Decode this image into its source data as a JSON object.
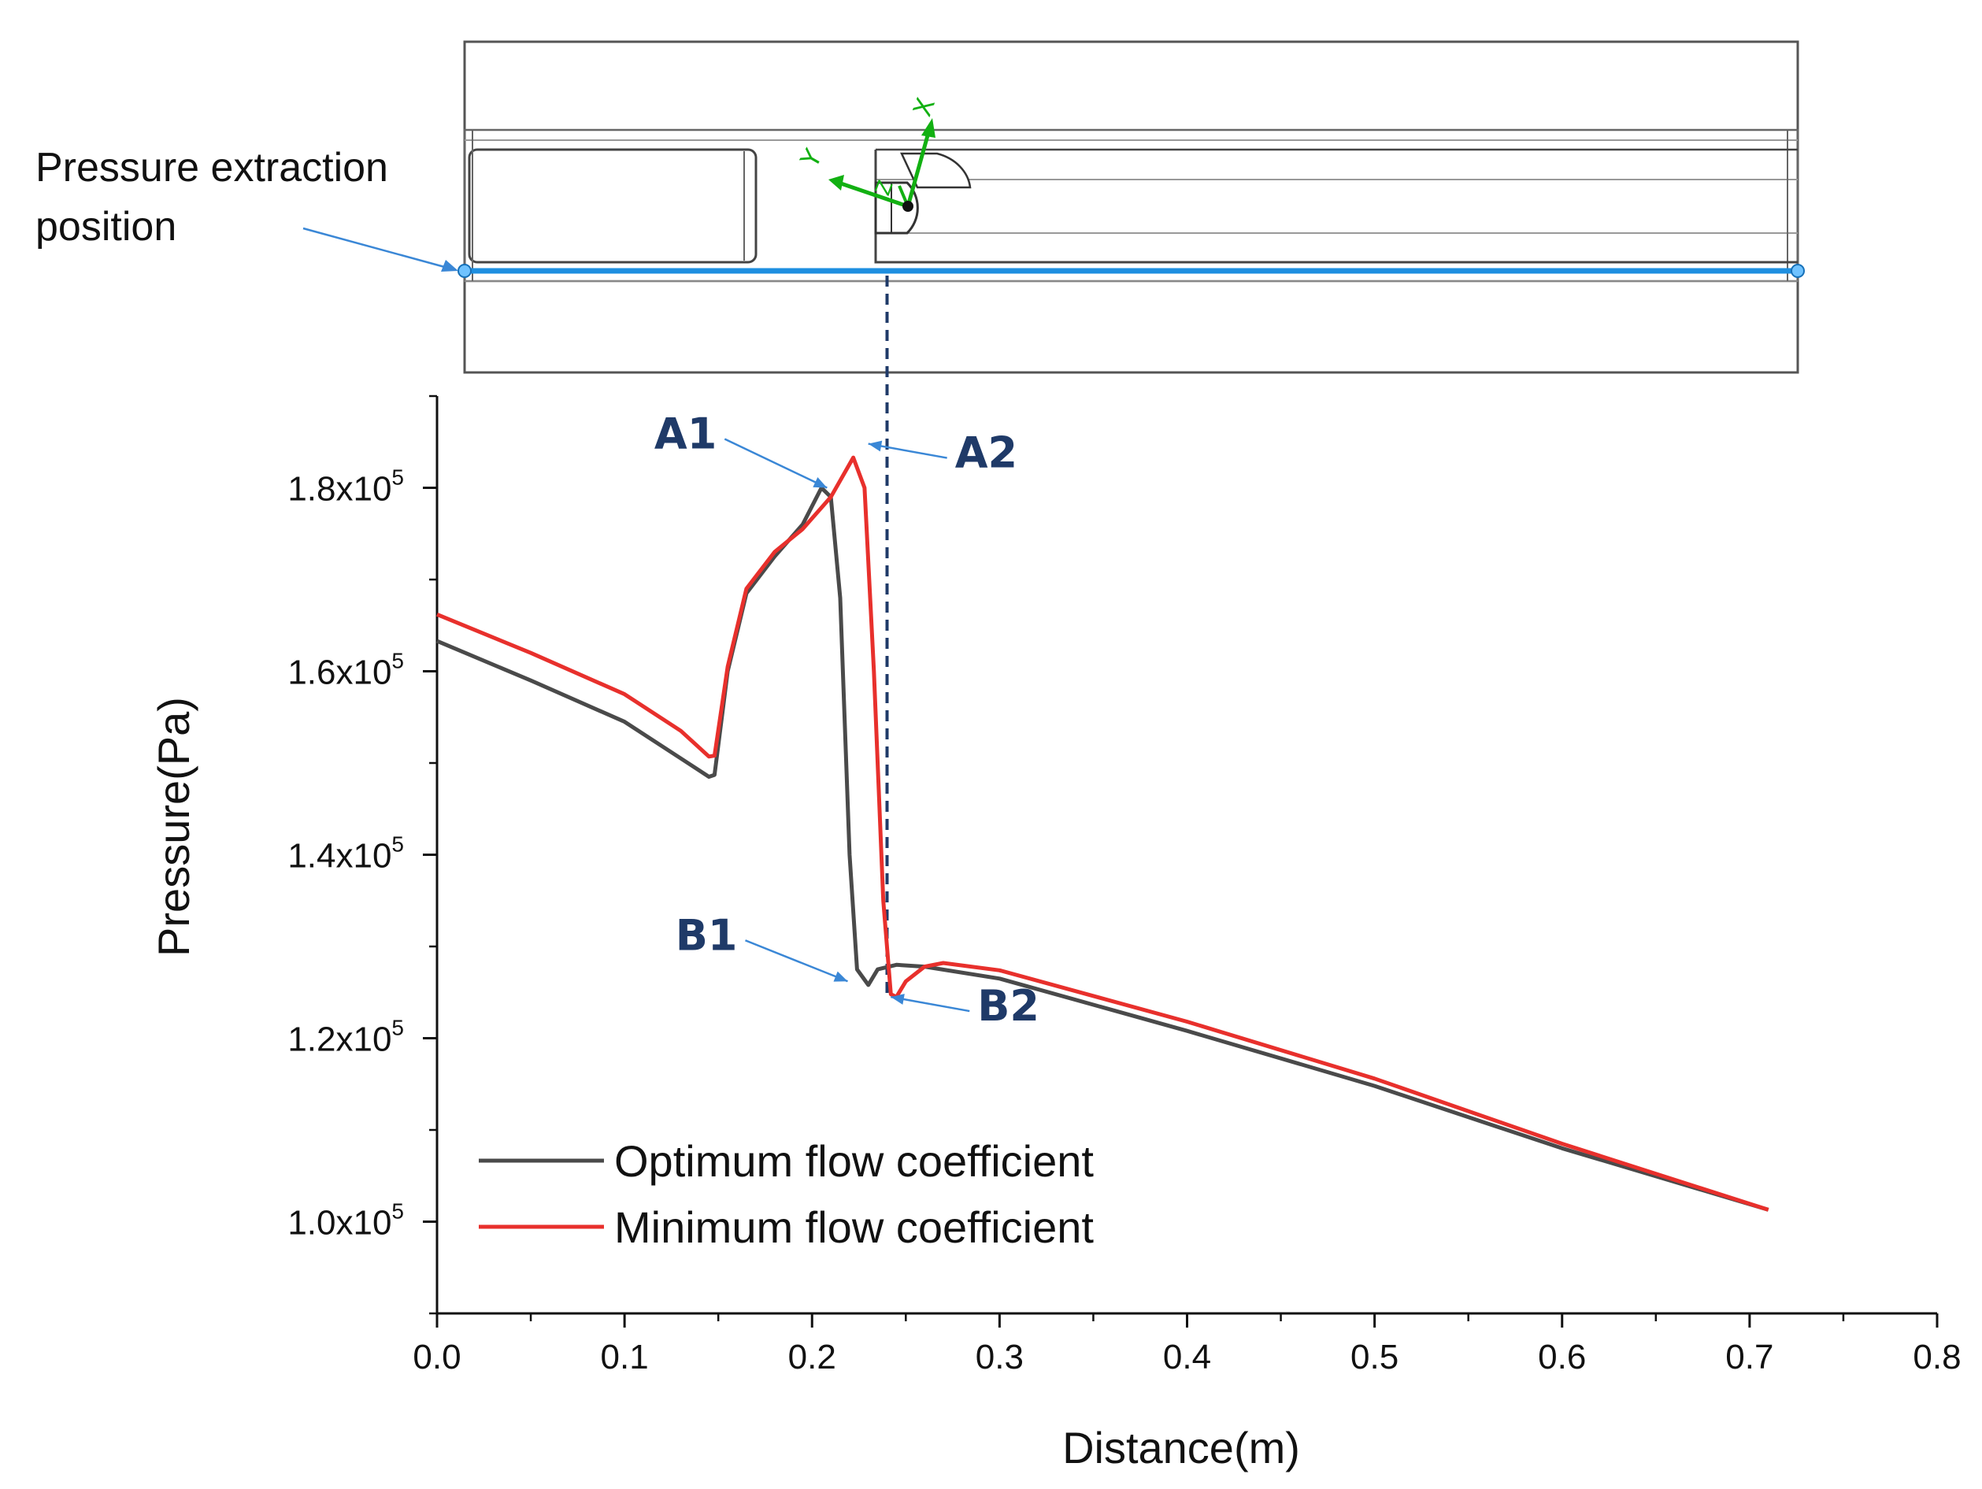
{
  "schematic": {
    "label_line1": "Pressure extraction",
    "label_line2": "position",
    "axis_labels": {
      "x": "X",
      "y": "Y",
      "z": "Z"
    }
  },
  "chart_data": {
    "type": "line",
    "title": "",
    "xlabel": "Distance(m)",
    "ylabel": "Pressure(Pa)",
    "xlim": [
      0.0,
      0.8
    ],
    "ylim": [
      90000,
      190000
    ],
    "xticks": [
      0.0,
      0.1,
      0.2,
      0.3,
      0.4,
      0.5,
      0.6,
      0.7,
      0.8
    ],
    "xtick_labels": [
      "0.0",
      "0.1",
      "0.2",
      "0.3",
      "0.4",
      "0.5",
      "0.6",
      "0.7",
      "0.8"
    ],
    "yticks": [
      {
        "value": 100000,
        "mantissa": "1.0x10",
        "exp": "5"
      },
      {
        "value": 120000,
        "mantissa": "1.2x10",
        "exp": "5"
      },
      {
        "value": 140000,
        "mantissa": "1.4x10",
        "exp": "5"
      },
      {
        "value": 160000,
        "mantissa": "1.6x10",
        "exp": "5"
      },
      {
        "value": 180000,
        "mantissa": "1.8x10",
        "exp": "5"
      }
    ],
    "legend_position": "bottom-left",
    "reference_line_x": 0.24,
    "series": [
      {
        "name": "Optimum flow coefficient",
        "color": "#4a4a4a",
        "points": [
          [
            0.0,
            163300
          ],
          [
            0.05,
            159000
          ],
          [
            0.1,
            154500
          ],
          [
            0.13,
            150500
          ],
          [
            0.145,
            148500
          ],
          [
            0.148,
            148700
          ],
          [
            0.155,
            160000
          ],
          [
            0.165,
            168500
          ],
          [
            0.18,
            172500
          ],
          [
            0.195,
            176000
          ],
          [
            0.205,
            180000
          ],
          [
            0.21,
            179000
          ],
          [
            0.215,
            168000
          ],
          [
            0.22,
            140000
          ],
          [
            0.224,
            127500
          ],
          [
            0.23,
            125800
          ],
          [
            0.235,
            127500
          ],
          [
            0.245,
            128000
          ],
          [
            0.26,
            127800
          ],
          [
            0.3,
            126500
          ],
          [
            0.4,
            120800
          ],
          [
            0.5,
            114800
          ],
          [
            0.6,
            108000
          ],
          [
            0.71,
            101300
          ]
        ]
      },
      {
        "name": "Minimum flow coefficient",
        "color": "#e8302c",
        "points": [
          [
            0.0,
            166200
          ],
          [
            0.05,
            162000
          ],
          [
            0.1,
            157500
          ],
          [
            0.13,
            153500
          ],
          [
            0.145,
            150700
          ],
          [
            0.148,
            150800
          ],
          [
            0.155,
            160500
          ],
          [
            0.165,
            169000
          ],
          [
            0.18,
            173000
          ],
          [
            0.195,
            175500
          ],
          [
            0.21,
            179000
          ],
          [
            0.222,
            183300
          ],
          [
            0.228,
            180000
          ],
          [
            0.233,
            160000
          ],
          [
            0.238,
            135000
          ],
          [
            0.242,
            124800
          ],
          [
            0.245,
            124500
          ],
          [
            0.25,
            126200
          ],
          [
            0.26,
            127800
          ],
          [
            0.27,
            128200
          ],
          [
            0.3,
            127400
          ],
          [
            0.4,
            121800
          ],
          [
            0.5,
            115600
          ],
          [
            0.6,
            108500
          ],
          [
            0.71,
            101300
          ]
        ]
      }
    ],
    "annotations": [
      {
        "text": "A1",
        "x": 0.208,
        "y": 180000
      },
      {
        "text": "A2",
        "x": 0.23,
        "y": 184800
      },
      {
        "text": "B1",
        "x": 0.219,
        "y": 126200
      },
      {
        "text": "B2",
        "x": 0.242,
        "y": 124500
      }
    ]
  }
}
